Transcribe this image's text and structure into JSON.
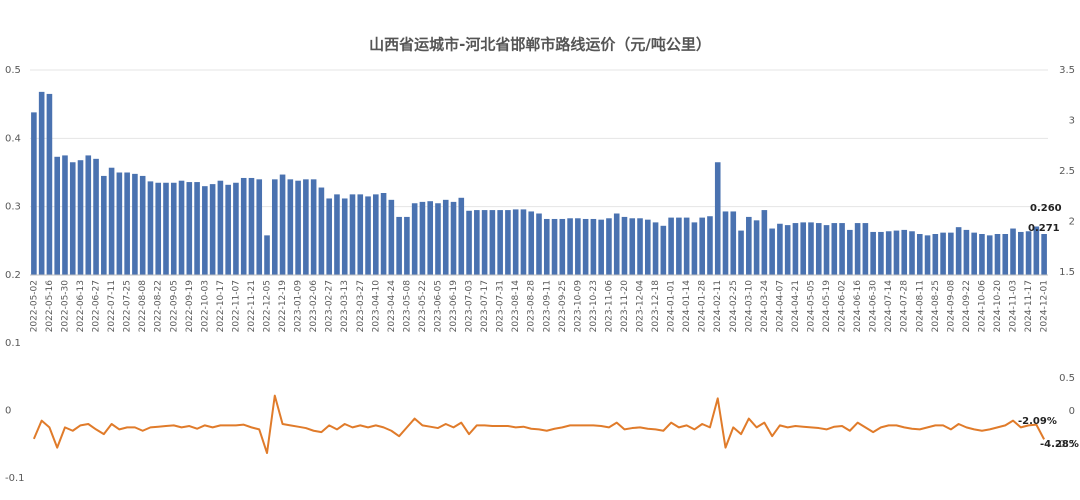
{
  "chart_data": [
    {
      "type": "bar",
      "title": "山西省运城市-河北省邯郸市路线运价（元/吨公里）",
      "color": "#4a72b0",
      "grid": true,
      "categories": [
        "2022-05-02",
        null,
        "2022-05-16",
        null,
        "2022-05-30",
        null,
        "2022-06-13",
        null,
        "2022-06-27",
        null,
        "2022-07-11",
        null,
        "2022-07-25",
        null,
        "2022-08-08",
        null,
        "2022-08-22",
        null,
        "2022-09-05",
        null,
        "2022-09-19",
        null,
        "2022-10-03",
        null,
        "2022-10-17",
        null,
        "2022-11-07",
        null,
        "2022-11-21",
        null,
        "2022-12-05",
        null,
        "2022-12-19",
        null,
        "2023-01-09",
        null,
        "2023-02-06",
        null,
        "2023-02-27",
        null,
        "2023-03-13",
        null,
        "2023-03-27",
        null,
        "2023-04-10",
        null,
        "2023-04-24",
        null,
        "2023-05-08",
        null,
        "2023-05-22",
        null,
        "2023-06-05",
        null,
        "2023-06-19",
        null,
        "2023-07-03",
        null,
        "2023-07-17",
        null,
        "2023-07-31",
        null,
        "2023-08-14",
        null,
        "2023-08-28",
        null,
        "2023-09-11",
        null,
        "2023-09-25",
        null,
        "2023-10-09",
        null,
        "2023-10-23",
        null,
        "2023-11-06",
        null,
        "2023-11-20",
        null,
        "2023-12-04",
        null,
        "2023-12-18",
        null,
        "2024-01-01",
        null,
        "2024-01-14",
        null,
        "2024-01-28",
        null,
        "2024-02-11",
        null,
        "2024-02-25",
        null,
        "2024-03-10",
        null,
        "2024-03-24",
        null,
        "2024-04-07",
        null,
        "2024-04-21",
        null,
        "2024-05-05",
        null,
        "2024-05-19",
        null,
        "2024-06-02",
        null,
        "2024-06-16",
        null,
        "2024-06-30",
        null,
        "2024-07-14",
        null,
        "2024-07-28",
        null,
        "2024-08-11",
        null,
        "2024-08-25",
        null,
        "2024-09-08",
        null,
        "2024-09-22",
        null,
        "2024-10-06",
        null,
        "2024-10-20",
        null,
        "2024-11-03",
        null,
        "2024-11-17",
        null,
        "2024-12-01"
      ],
      "values": [
        0.438,
        0.468,
        0.465,
        0.373,
        0.375,
        0.365,
        0.368,
        0.375,
        0.37,
        0.345,
        0.357,
        0.35,
        0.35,
        0.348,
        0.345,
        0.337,
        0.335,
        0.335,
        0.335,
        0.338,
        0.336,
        0.336,
        0.33,
        0.333,
        0.338,
        0.332,
        0.335,
        0.342,
        0.342,
        0.34,
        0.258,
        0.34,
        0.347,
        0.34,
        0.338,
        0.34,
        0.34,
        0.328,
        0.312,
        0.318,
        0.312,
        0.318,
        0.318,
        0.315,
        0.318,
        0.32,
        0.31,
        0.285,
        0.285,
        0.305,
        0.307,
        0.308,
        0.305,
        0.31,
        0.307,
        0.313,
        0.294,
        0.295,
        0.295,
        0.295,
        0.295,
        0.295,
        0.296,
        0.296,
        0.293,
        0.29,
        0.282,
        0.282,
        0.282,
        0.283,
        0.283,
        0.282,
        0.282,
        0.281,
        0.283,
        0.29,
        0.285,
        0.283,
        0.283,
        0.281,
        0.277,
        0.272,
        0.284,
        0.284,
        0.284,
        0.277,
        0.284,
        0.286,
        0.365,
        0.293,
        0.293,
        0.265,
        0.285,
        0.28,
        0.295,
        0.268,
        0.275,
        0.273,
        0.276,
        0.277,
        0.277,
        0.276,
        0.273,
        0.276,
        0.276,
        0.266,
        0.276,
        0.276,
        0.263,
        0.263,
        0.264,
        0.265,
        0.266,
        0.264,
        0.26,
        0.258,
        0.26,
        0.262,
        0.262,
        0.27,
        0.266,
        0.262,
        0.26,
        0.258,
        0.26,
        0.26,
        0.268,
        0.263,
        0.264,
        0.271,
        0.26
      ],
      "ylim": [
        0.2,
        0.5
      ],
      "yticks": [
        0.2,
        0.3,
        0.4,
        0.5
      ],
      "y2lim": [
        1.5,
        3.5
      ],
      "y2ticks": [
        1.5,
        2,
        2.5,
        3,
        3.5
      ],
      "annotations": [
        "0.260",
        "0.271"
      ]
    },
    {
      "type": "line",
      "color": "#e07b2a",
      "values": [
        -0.042,
        -0.015,
        -0.025,
        -0.055,
        -0.025,
        -0.03,
        -0.022,
        -0.02,
        -0.028,
        -0.035,
        -0.02,
        -0.028,
        -0.025,
        -0.025,
        -0.03,
        -0.025,
        -0.024,
        -0.023,
        -0.022,
        -0.025,
        -0.023,
        -0.027,
        -0.022,
        -0.025,
        -0.022,
        -0.022,
        -0.022,
        -0.021,
        -0.025,
        -0.028,
        -0.063,
        0.022,
        -0.02,
        -0.022,
        -0.024,
        -0.026,
        -0.03,
        -0.032,
        -0.022,
        -0.028,
        -0.02,
        -0.025,
        -0.022,
        -0.025,
        -0.022,
        -0.025,
        -0.03,
        -0.038,
        -0.025,
        -0.012,
        -0.022,
        -0.024,
        -0.026,
        -0.02,
        -0.025,
        -0.018,
        -0.035,
        -0.022,
        -0.022,
        -0.023,
        -0.023,
        -0.023,
        -0.025,
        -0.024,
        -0.027,
        -0.028,
        -0.03,
        -0.027,
        -0.025,
        -0.022,
        -0.022,
        -0.022,
        -0.022,
        -0.023,
        -0.025,
        -0.018,
        -0.028,
        -0.026,
        -0.025,
        -0.027,
        -0.028,
        -0.03,
        -0.018,
        -0.025,
        -0.022,
        -0.028,
        -0.02,
        -0.025,
        0.018,
        -0.055,
        -0.025,
        -0.035,
        -0.012,
        -0.025,
        -0.018,
        -0.038,
        -0.022,
        -0.025,
        -0.023,
        -0.024,
        -0.025,
        -0.026,
        -0.028,
        -0.024,
        -0.023,
        -0.03,
        -0.018,
        -0.025,
        -0.032,
        -0.025,
        -0.022,
        -0.022,
        -0.025,
        -0.027,
        -0.028,
        -0.025,
        -0.022,
        -0.022,
        -0.028,
        -0.02,
        -0.025,
        -0.028,
        -0.03,
        -0.028,
        -0.025,
        -0.022,
        -0.015,
        -0.025,
        -0.022,
        -0.0209,
        -0.0428
      ],
      "ylim": [
        -0.1,
        0.1
      ],
      "yticks": [
        -0.1,
        0,
        0.1
      ],
      "y2lim": [
        -0.5,
        0.5
      ],
      "y2ticks": [
        -0.5,
        0,
        0.5
      ],
      "annotations": [
        "-2.09%",
        "-4.28%"
      ]
    }
  ]
}
